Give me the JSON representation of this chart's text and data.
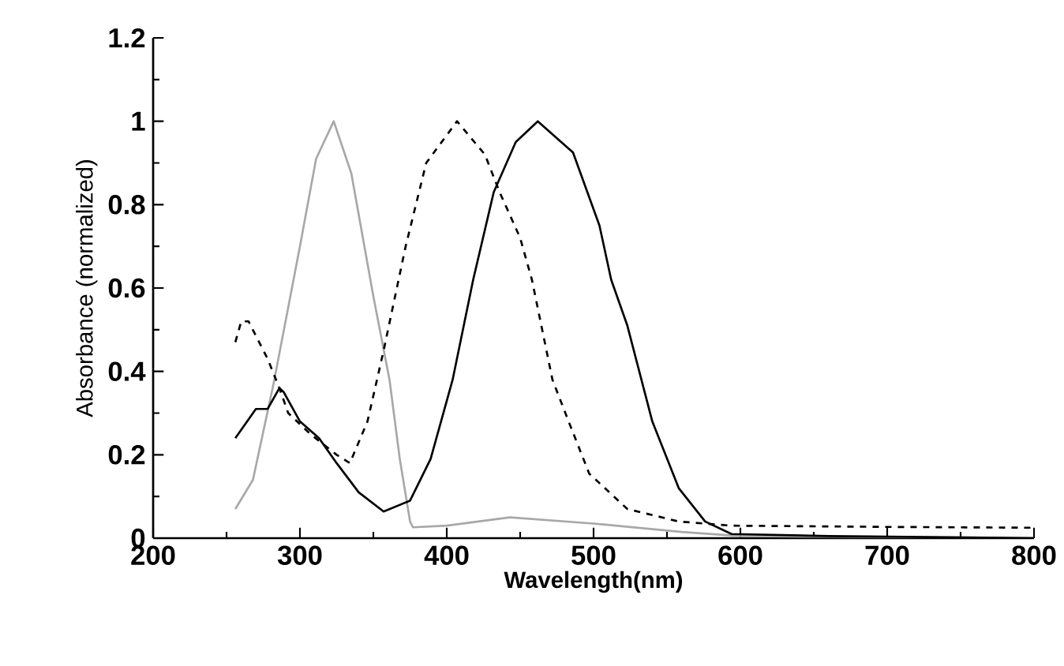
{
  "chart_data": {
    "type": "line",
    "xlabel": "Wavelength(nm)",
    "ylabel": "Absorbance (normalized)",
    "xlim": [
      200,
      800
    ],
    "ylim": [
      0,
      1.2
    ],
    "xticks": [
      200,
      300,
      400,
      500,
      600,
      700,
      800
    ],
    "yticks": [
      0,
      0.2,
      0.4,
      0.6,
      0.8,
      1,
      1.2
    ],
    "grid": false,
    "marker": "none",
    "series": [
      {
        "color": "#a8a8a8",
        "line_style": "solid",
        "x": [
          256,
          268,
          282,
          300,
          311,
          323,
          335,
          350,
          361,
          368,
          375,
          377,
          400,
          443,
          500,
          560,
          600,
          700,
          800
        ],
        "values": [
          0.07,
          0.14,
          0.37,
          0.7,
          0.91,
          1.0,
          0.875,
          0.58,
          0.38,
          0.19,
          0.04,
          0.026,
          0.03,
          0.05,
          0.035,
          0.015,
          0.005,
          0.003,
          0.0
        ]
      },
      {
        "color": "#000000",
        "line_style": "dashed",
        "x": [
          256,
          260,
          265,
          278,
          286,
          292,
          307,
          325,
          334,
          346,
          357,
          372,
          386,
          407,
          426,
          436,
          450,
          458,
          472,
          483,
          497,
          523,
          558,
          594,
          700,
          800
        ],
        "values": [
          0.47,
          0.52,
          0.52,
          0.43,
          0.36,
          0.3,
          0.25,
          0.2,
          0.18,
          0.28,
          0.45,
          0.7,
          0.9,
          1.0,
          0.92,
          0.83,
          0.72,
          0.62,
          0.38,
          0.28,
          0.155,
          0.07,
          0.04,
          0.03,
          0.027,
          0.025
        ]
      },
      {
        "color": "#000000",
        "line_style": "solid",
        "x": [
          256,
          270,
          278,
          286,
          289,
          300,
          313,
          325,
          340,
          357,
          375,
          389,
          404,
          418,
          432,
          447,
          462,
          486,
          504,
          512,
          523,
          540,
          558,
          576,
          594,
          660,
          800
        ],
        "values": [
          0.24,
          0.31,
          0.31,
          0.36,
          0.35,
          0.28,
          0.24,
          0.18,
          0.11,
          0.064,
          0.09,
          0.19,
          0.38,
          0.62,
          0.83,
          0.95,
          1.0,
          0.925,
          0.75,
          0.62,
          0.51,
          0.28,
          0.12,
          0.04,
          0.01,
          0.005,
          0.0
        ]
      }
    ]
  }
}
